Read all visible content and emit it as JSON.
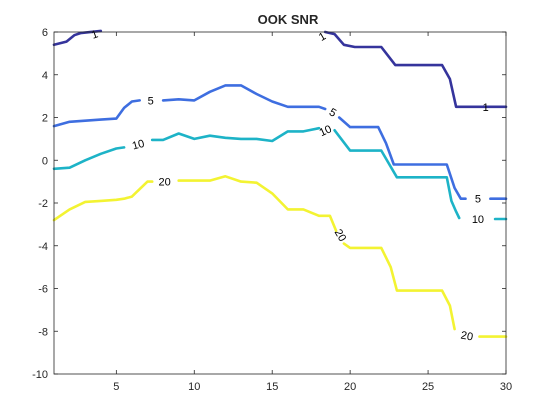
{
  "chart_data": {
    "type": "line",
    "title": "OOK SNR",
    "xlabel": "",
    "ylabel": "",
    "xlim": [
      1,
      30
    ],
    "ylim": [
      -10,
      6
    ],
    "xticks": [
      5,
      10,
      15,
      20,
      25,
      30
    ],
    "yticks": [
      6,
      4,
      2,
      0,
      -2,
      -4,
      -6,
      -8,
      -10
    ],
    "xtick_labels": [
      "5",
      "10",
      "15",
      "20",
      "25",
      "30"
    ],
    "ytick_labels": [
      "6",
      "4",
      "2",
      "0",
      "-2",
      "-4",
      "-6",
      "-8",
      "-10"
    ],
    "grid": false,
    "series": [
      {
        "level": "1",
        "color": "#35349c",
        "segments": [
          [
            [
              1,
              5.4
            ],
            [
              1.8,
              5.55
            ],
            [
              2.3,
              5.85
            ],
            [
              2.7,
              5.95
            ],
            [
              4,
              6.05
            ]
          ],
          [
            [
              18.4,
              6.0
            ],
            [
              19,
              5.9
            ],
            [
              19.6,
              5.4
            ],
            [
              20.3,
              5.3
            ],
            [
              22,
              5.3
            ],
            [
              22.9,
              4.45
            ],
            [
              25.9,
              4.45
            ],
            [
              26.4,
              3.8
            ],
            [
              26.8,
              2.5
            ],
            [
              27.5,
              2.5
            ],
            [
              28.1,
              2.5
            ],
            [
              28.4,
              2.5
            ],
            [
              29.3,
              2.5
            ],
            [
              30,
              2.5
            ]
          ]
        ],
        "labels": [
          {
            "x": 3.6,
            "y": 5.9,
            "text": "1",
            "angle": -20
          },
          {
            "x": 18.2,
            "y": 5.8,
            "text": "1",
            "angle": -30
          },
          {
            "x": 28.7,
            "y": 2.5,
            "text": "1",
            "angle": 0
          }
        ]
      },
      {
        "level": "5",
        "color": "#3e6ee0",
        "segments": [
          [
            [
              1,
              1.6
            ],
            [
              2,
              1.8
            ],
            [
              3,
              1.85
            ],
            [
              4,
              1.9
            ],
            [
              5,
              1.95
            ],
            [
              5.5,
              2.45
            ],
            [
              6,
              2.75
            ],
            [
              6.5,
              2.8
            ]
          ],
          [
            [
              8,
              2.8
            ],
            [
              9,
              2.85
            ],
            [
              10,
              2.8
            ],
            [
              11,
              3.2
            ],
            [
              12,
              3.5
            ],
            [
              13,
              3.5
            ],
            [
              14,
              3.1
            ],
            [
              15,
              2.75
            ],
            [
              16,
              2.5
            ],
            [
              17,
              2.5
            ],
            [
              18,
              2.5
            ],
            [
              18.4,
              2.4
            ]
          ],
          [
            [
              19.3,
              2.0
            ],
            [
              20,
              1.55
            ],
            [
              21.8,
              1.55
            ],
            [
              22.3,
              0.8
            ],
            [
              22.8,
              -0.2
            ],
            [
              26.2,
              -0.2
            ],
            [
              26.7,
              -1.3
            ],
            [
              27.1,
              -1.8
            ],
            [
              27.4,
              -1.8
            ]
          ],
          [
            [
              29,
              -1.8
            ],
            [
              30,
              -1.8
            ]
          ]
        ],
        "labels": [
          {
            "x": 7.2,
            "y": 2.8,
            "text": "5",
            "angle": 0
          },
          {
            "x": 18.9,
            "y": 2.25,
            "text": "5",
            "angle": 30
          },
          {
            "x": 28.2,
            "y": -1.8,
            "text": "5",
            "angle": 0
          }
        ]
      },
      {
        "level": "10",
        "color": "#1db3c7",
        "segments": [
          [
            [
              1,
              -0.4
            ],
            [
              2,
              -0.35
            ],
            [
              3,
              0
            ],
            [
              4,
              0.3
            ],
            [
              5,
              0.55
            ],
            [
              5.5,
              0.6
            ]
          ],
          [
            [
              7.3,
              0.95
            ],
            [
              8,
              0.95
            ],
            [
              9,
              1.25
            ],
            [
              10,
              1.0
            ],
            [
              11,
              1.15
            ],
            [
              12,
              1.05
            ],
            [
              13,
              1.0
            ],
            [
              14,
              1.0
            ],
            [
              15,
              0.9
            ],
            [
              16,
              1.35
            ],
            [
              17,
              1.35
            ],
            [
              18,
              1.5
            ]
          ],
          [
            [
              19,
              1.4
            ],
            [
              20,
              0.45
            ],
            [
              22,
              0.45
            ],
            [
              23,
              -0.8
            ],
            [
              26.2,
              -0.8
            ],
            [
              26.5,
              -1.9
            ],
            [
              26.8,
              -2.4
            ],
            [
              27,
              -2.7
            ]
          ],
          [
            [
              29.3,
              -2.75
            ],
            [
              30,
              -2.75
            ]
          ]
        ],
        "labels": [
          {
            "x": 6.4,
            "y": 0.75,
            "text": "10",
            "angle": -15
          },
          {
            "x": 18.4,
            "y": 1.4,
            "text": "10",
            "angle": -25
          },
          {
            "x": 28.2,
            "y": -2.75,
            "text": "10",
            "angle": 0
          }
        ]
      },
      {
        "level": "20",
        "color": "#f3f332",
        "segments": [
          [
            [
              1,
              -2.8
            ],
            [
              2,
              -2.3
            ],
            [
              3,
              -1.95
            ],
            [
              4,
              -1.9
            ],
            [
              5,
              -1.85
            ],
            [
              5.5,
              -1.8
            ],
            [
              6,
              -1.7
            ],
            [
              7,
              -1.0
            ],
            [
              7.3,
              -1.0
            ]
          ],
          [
            [
              9,
              -0.95
            ],
            [
              10,
              -0.95
            ],
            [
              11,
              -0.95
            ],
            [
              12,
              -0.75
            ],
            [
              13,
              -1.0
            ],
            [
              14,
              -1.05
            ],
            [
              15,
              -1.55
            ],
            [
              16,
              -2.3
            ],
            [
              17,
              -2.3
            ],
            [
              18,
              -2.6
            ],
            [
              18.7,
              -2.6
            ],
            [
              19.1,
              -3.3
            ]
          ],
          [
            [
              19.6,
              -3.9
            ],
            [
              20,
              -4.1
            ],
            [
              22,
              -4.1
            ],
            [
              22.6,
              -5.0
            ],
            [
              23,
              -6.1
            ],
            [
              25.9,
              -6.1
            ],
            [
              26.4,
              -6.8
            ],
            [
              26.7,
              -7.9
            ]
          ],
          [
            [
              28.3,
              -8.25
            ],
            [
              30,
              -8.25
            ]
          ]
        ],
        "labels": [
          {
            "x": 8.1,
            "y": -1.0,
            "text": "20",
            "angle": 0
          },
          {
            "x": 19.4,
            "y": -3.5,
            "text": "20",
            "angle": 60
          },
          {
            "x": 27.5,
            "y": -8.2,
            "text": "20",
            "angle": 10
          }
        ]
      }
    ]
  }
}
